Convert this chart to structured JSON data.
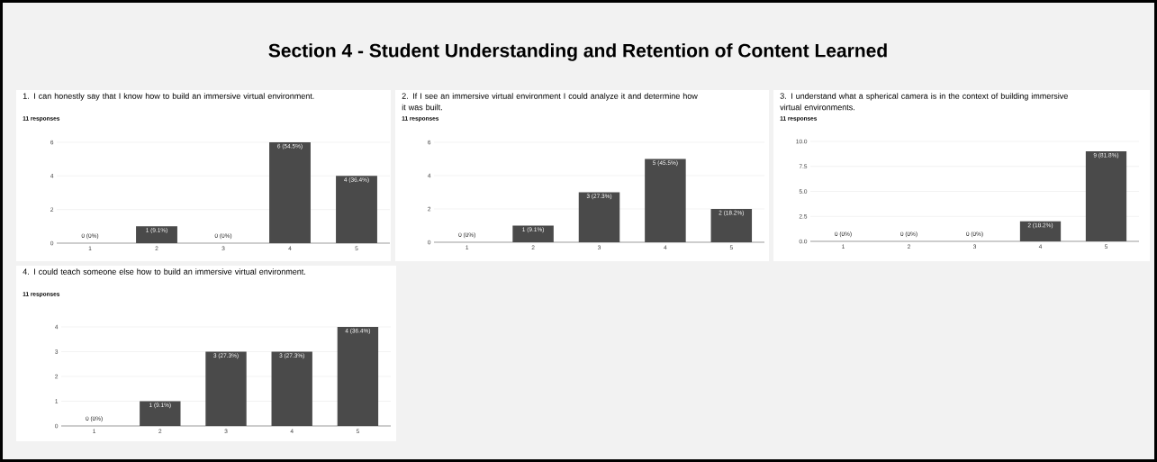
{
  "chart_data": [
    {
      "type": "other",
      "title": "Section 4 - Student Understanding and Retention of Content Learned"
    },
    {
      "type": "bar",
      "title": "1. I can honestly say that I know how to build an immersive virtual environment.",
      "subtitle": "11 responses",
      "categories": [
        "1",
        "2",
        "3",
        "4",
        "5"
      ],
      "values": [
        0,
        1,
        0,
        6,
        4
      ],
      "value_labels": [
        "0 (0%)",
        "1 (9.1%)",
        "0 (0%)",
        "6 (54.5%)",
        "4 (36.4%)"
      ],
      "color": "#4a4a4a",
      "ylim": [
        0,
        6
      ],
      "yticks": [
        0,
        2,
        4,
        6
      ],
      "grid": "y"
    },
    {
      "type": "bar",
      "title": "2. If I see an immersive virtual environment I could analyze it and determine how it was built.",
      "subtitle": "11 responses",
      "categories": [
        "1",
        "2",
        "3",
        "4",
        "5"
      ],
      "values": [
        0,
        1,
        3,
        5,
        2
      ],
      "value_labels": [
        "0 (0%)",
        "1 (9.1%)",
        "3 (27.3%)",
        "5 (45.5%)",
        "2 (18.2%)"
      ],
      "color": "#4a4a4a",
      "ylim": [
        0,
        6
      ],
      "yticks": [
        0,
        2,
        4,
        6
      ],
      "grid": "y"
    },
    {
      "type": "bar",
      "title": "3. I understand what a spherical camera is in the context of building immersive virtual environments.",
      "subtitle": "11 responses",
      "categories": [
        "1",
        "2",
        "3",
        "4",
        "5"
      ],
      "values": [
        0,
        0,
        0,
        2,
        9
      ],
      "value_labels": [
        "0 (0%)",
        "0 (0%)",
        "0 (0%)",
        "2 (18.2%)",
        "9 (81.8%)"
      ],
      "color": "#4a4a4a",
      "ylim": [
        0,
        10
      ],
      "yticks": [
        {
          "value": 0,
          "label": "0.0"
        },
        2.5,
        {
          "value": 5,
          "label": "5.0"
        },
        7.5,
        {
          "value": 10,
          "label": "10.0"
        }
      ],
      "grid": "y"
    },
    {
      "type": "bar",
      "title": "4. I could teach someone else how to build an immersive virtual environment.",
      "subtitle": "11 responses",
      "categories": [
        "1",
        "2",
        "3",
        "4",
        "5"
      ],
      "values": [
        0,
        1,
        3,
        3,
        4
      ],
      "value_labels": [
        "0 (0%)",
        "1 (9.1%)",
        "3 (27.3%)",
        "3 (27.3%)",
        "4 (36.4%)"
      ],
      "color": "#4a4a4a",
      "ylim": [
        0,
        4
      ],
      "yticks": [
        0,
        1,
        2,
        3,
        4
      ],
      "grid": "y"
    }
  ]
}
